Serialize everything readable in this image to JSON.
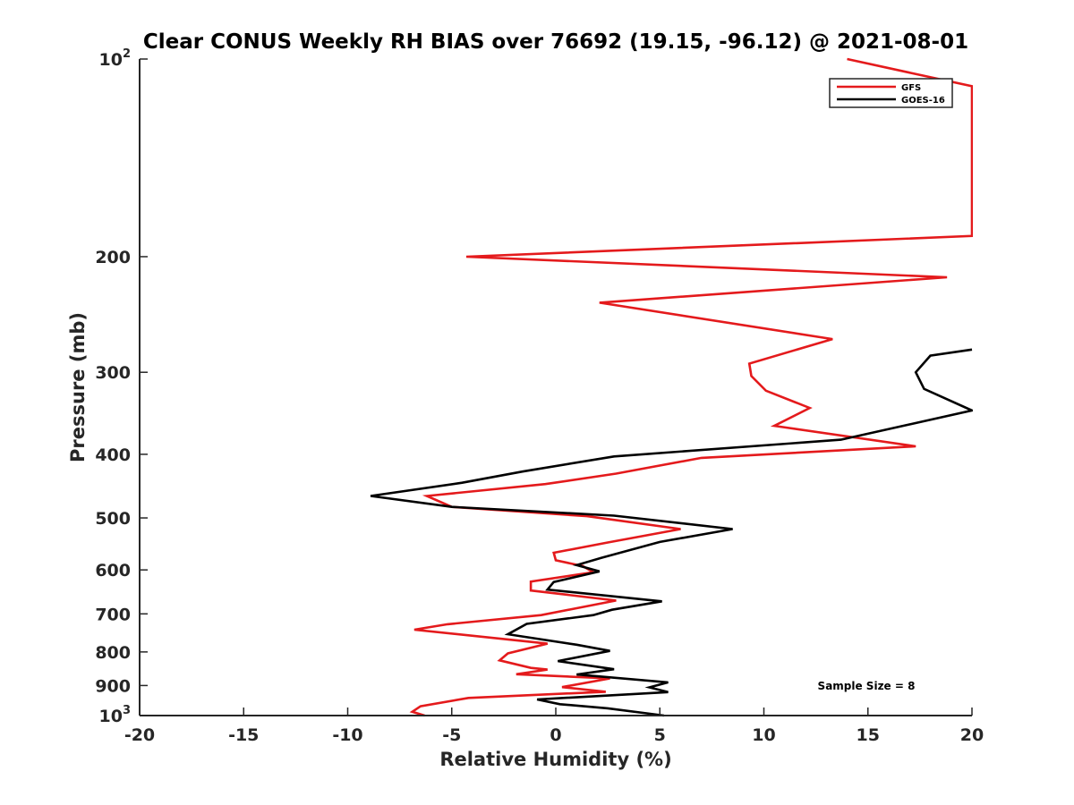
{
  "chart_data": {
    "type": "line",
    "title": "Clear CONUS Weekly RH BIAS over 76692 (19.15, -96.12) @ 2021-08-01",
    "xlabel": "Relative Humidity (%)",
    "ylabel": "Pressure (mb)",
    "xlim": [
      -20,
      20
    ],
    "ylim": [
      100,
      1000
    ],
    "yscale": "log",
    "y_reversed": true,
    "grid": false,
    "legend_position": "top-right",
    "x_ticks": [
      -20,
      -15,
      -10,
      -5,
      0,
      5,
      10,
      15,
      20
    ],
    "x_tick_labels": [
      "-20",
      "-15",
      "-10",
      "-5",
      "0",
      "5",
      "10",
      "15",
      "20"
    ],
    "y_ticks": [
      {
        "value": 100,
        "label": "10",
        "exp": "2"
      },
      {
        "value": 200,
        "label": "200"
      },
      {
        "value": 300,
        "label": "300"
      },
      {
        "value": 400,
        "label": "400"
      },
      {
        "value": 500,
        "label": "500"
      },
      {
        "value": 600,
        "label": "600"
      },
      {
        "value": 700,
        "label": "700"
      },
      {
        "value": 800,
        "label": "800"
      },
      {
        "value": 900,
        "label": "900"
      },
      {
        "value": 1000,
        "label": "10",
        "exp": "3"
      }
    ],
    "annotation": "Sample Size = 8",
    "series": [
      {
        "name": "GFS",
        "color": "#e41a1c",
        "points": [
          [
            14.0,
            100.0
          ],
          [
            20.0,
            110.0
          ],
          [
            20.0,
            186.0
          ],
          [
            -4.3,
            200.0
          ],
          [
            18.8,
            215.0
          ],
          [
            2.1,
            235.0
          ],
          [
            13.3,
            267.0
          ],
          [
            9.3,
            291.0
          ],
          [
            9.4,
            304.0
          ],
          [
            10.1,
            320.0
          ],
          [
            12.2,
            340.0
          ],
          [
            10.5,
            362.0
          ],
          [
            17.3,
            389.0
          ],
          [
            7.0,
            405.0
          ],
          [
            2.9,
            428.0
          ],
          [
            -0.5,
            444.0
          ],
          [
            -6.2,
            463.0
          ],
          [
            -5.0,
            481.0
          ],
          [
            1.5,
            497.0
          ],
          [
            6.0,
            520.0
          ],
          [
            2.5,
            545.0
          ],
          [
            -0.1,
            565.0
          ],
          [
            0.0,
            580.0
          ],
          [
            1.3,
            592.0
          ],
          [
            1.8,
            605.0
          ],
          [
            -1.2,
            625.0
          ],
          [
            -1.2,
            645.0
          ],
          [
            2.9,
            668.0
          ],
          [
            -0.7,
            703.0
          ],
          [
            -5.2,
            726.0
          ],
          [
            -6.8,
            740.0
          ],
          [
            -0.4,
            777.0
          ],
          [
            -2.3,
            804.0
          ],
          [
            -2.7,
            824.0
          ],
          [
            -1.2,
            846.0
          ],
          [
            -0.4,
            851.0
          ],
          [
            -1.9,
            865.0
          ],
          [
            2.6,
            878.0
          ],
          [
            0.3,
            905.0
          ],
          [
            2.4,
            920.0
          ],
          [
            -4.2,
            940.0
          ],
          [
            -6.5,
            968.0
          ],
          [
            -6.9,
            987.0
          ],
          [
            -6.3,
            1000.0
          ]
        ]
      },
      {
        "name": "GOES-16",
        "color": "#000000",
        "points": [
          [
            20.0,
            277.0
          ],
          [
            18.0,
            283.0
          ],
          [
            17.3,
            300.0
          ],
          [
            17.7,
            318.0
          ],
          [
            20.0,
            343.0
          ],
          [
            13.7,
            380.0
          ],
          [
            2.8,
            403.0
          ],
          [
            -1.6,
            425.0
          ],
          [
            -4.5,
            442.0
          ],
          [
            -8.9,
            463.0
          ],
          [
            -5.0,
            481.0
          ],
          [
            2.8,
            496.0
          ],
          [
            8.5,
            520.0
          ],
          [
            5.0,
            544.0
          ],
          [
            2.2,
            575.0
          ],
          [
            1.0,
            590.0
          ],
          [
            2.1,
            603.0
          ],
          [
            -0.1,
            626.0
          ],
          [
            -0.4,
            643.0
          ],
          [
            5.1,
            670.0
          ],
          [
            2.7,
            690.0
          ],
          [
            1.8,
            703.0
          ],
          [
            -1.4,
            725.0
          ],
          [
            -2.3,
            752.0
          ],
          [
            1.0,
            780.0
          ],
          [
            2.6,
            797.0
          ],
          [
            0.1,
            826.0
          ],
          [
            2.8,
            850.0
          ],
          [
            1.0,
            866.0
          ],
          [
            5.4,
            890.0
          ],
          [
            4.5,
            906.0
          ],
          [
            5.4,
            921.0
          ],
          [
            -0.9,
            945.0
          ],
          [
            0.2,
            961.0
          ],
          [
            2.5,
            975.0
          ],
          [
            5.2,
            1000.0
          ]
        ]
      }
    ]
  }
}
